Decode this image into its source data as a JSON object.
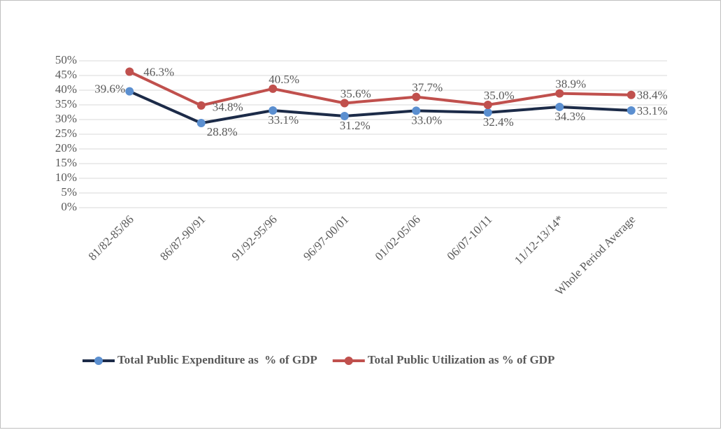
{
  "chart_data": {
    "type": "line",
    "categories": [
      "81/82-85/86",
      "86/87-90/91",
      "91/92-95/96",
      "96/97-00/01",
      "01/02-05/06",
      "06/07-10/11",
      "11/12-13/14*",
      "Whole Period Average"
    ],
    "series": [
      {
        "name": "Total Public Expenditure as  % of GDP",
        "color": "#1c2b48",
        "marker_color": "#5b8fd0",
        "values": [
          39.6,
          28.8,
          33.1,
          31.2,
          33.0,
          32.4,
          34.3,
          33.1
        ],
        "value_labels": [
          "39.6%",
          "28.8%",
          "33.1%",
          "31.2%",
          "33.0%",
          "32.4%",
          "34.3%",
          "33.1%"
        ]
      },
      {
        "name": "Total Public Utilization as % of GDP",
        "color": "#c0504d",
        "marker_color": "#c0504d",
        "values": [
          46.3,
          34.8,
          40.5,
          35.6,
          37.7,
          35.0,
          38.9,
          38.4
        ],
        "value_labels": [
          "46.3%",
          "34.8%",
          "40.5%",
          "35.6%",
          "37.7%",
          "35.0%",
          "38.9%",
          "38.4%"
        ]
      }
    ],
    "ylim": [
      0,
      50
    ],
    "yticks": [
      {
        "value": 0,
        "label": "0%"
      },
      {
        "value": 5,
        "label": "5%"
      },
      {
        "value": 10,
        "label": "10%"
      },
      {
        "value": 15,
        "label": "15%"
      },
      {
        "value": 20,
        "label": "20%"
      },
      {
        "value": 25,
        "label": "25%"
      },
      {
        "value": 30,
        "label": "30%"
      },
      {
        "value": 35,
        "label": "35%"
      },
      {
        "value": 40,
        "label": "40%"
      },
      {
        "value": 45,
        "label": "45%"
      },
      {
        "value": 50,
        "label": "50%"
      }
    ],
    "grid": true,
    "legend": "bottom"
  }
}
